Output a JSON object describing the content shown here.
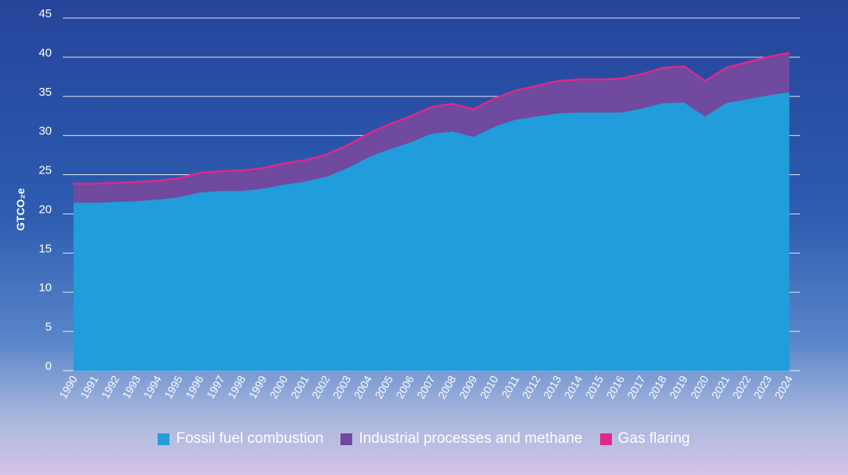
{
  "colors": {
    "fossil": "#219ddb",
    "industrial": "#6f4a9e",
    "flaring": "#e0288c",
    "grid": "#ffffff",
    "text": "#ffffff"
  },
  "chart_data": {
    "type": "area",
    "stacked": true,
    "ylabel": "GTCO₂e",
    "ylim": [
      0,
      45
    ],
    "yticks": [
      0,
      5,
      10,
      15,
      20,
      25,
      30,
      35,
      40,
      45
    ],
    "grid": true,
    "legend_placement": "bottom",
    "x": [
      "1990",
      "1991",
      "1992",
      "1993",
      "1994",
      "1995",
      "1996",
      "1997",
      "1998",
      "1999",
      "2000",
      "2001",
      "2002",
      "2003",
      "2004",
      "2005",
      "2006",
      "2007",
      "2008",
      "2009",
      "2010",
      "2011",
      "2012",
      "2013",
      "2014",
      "2015",
      "2016",
      "2017",
      "2018",
      "2019",
      "2020",
      "2021",
      "2022",
      "2023",
      "2024"
    ],
    "series": [
      {
        "name": "Fossil fuel combustion",
        "color": "#219ddb",
        "values": [
          21.4,
          21.4,
          21.5,
          21.6,
          21.8,
          22.1,
          22.7,
          22.9,
          22.9,
          23.2,
          23.7,
          24.1,
          24.7,
          25.8,
          27.2,
          28.2,
          29.1,
          30.2,
          30.5,
          29.8,
          31.1,
          32.0,
          32.4,
          32.8,
          32.9,
          32.9,
          32.9,
          33.4,
          34.1,
          34.2,
          32.4,
          34.1,
          34.6,
          35.1,
          35.5
        ]
      },
      {
        "name": "Industrial processes and methane",
        "color": "#6f4a9e",
        "values": [
          2.3,
          2.3,
          2.3,
          2.3,
          2.3,
          2.3,
          2.4,
          2.4,
          2.5,
          2.5,
          2.6,
          2.6,
          2.7,
          2.8,
          2.9,
          3.1,
          3.2,
          3.3,
          3.4,
          3.4,
          3.5,
          3.6,
          3.8,
          4.0,
          4.1,
          4.1,
          4.2,
          4.3,
          4.4,
          4.5,
          4.4,
          4.4,
          4.6,
          4.8,
          4.9
        ]
      },
      {
        "name": "Gas flaring",
        "color": "#e0288c",
        "values": [
          0.2,
          0.2,
          0.2,
          0.2,
          0.2,
          0.2,
          0.2,
          0.2,
          0.2,
          0.2,
          0.2,
          0.2,
          0.2,
          0.2,
          0.2,
          0.2,
          0.2,
          0.2,
          0.2,
          0.2,
          0.2,
          0.2,
          0.2,
          0.2,
          0.2,
          0.2,
          0.2,
          0.2,
          0.2,
          0.2,
          0.2,
          0.2,
          0.2,
          0.2,
          0.2
        ]
      }
    ]
  }
}
